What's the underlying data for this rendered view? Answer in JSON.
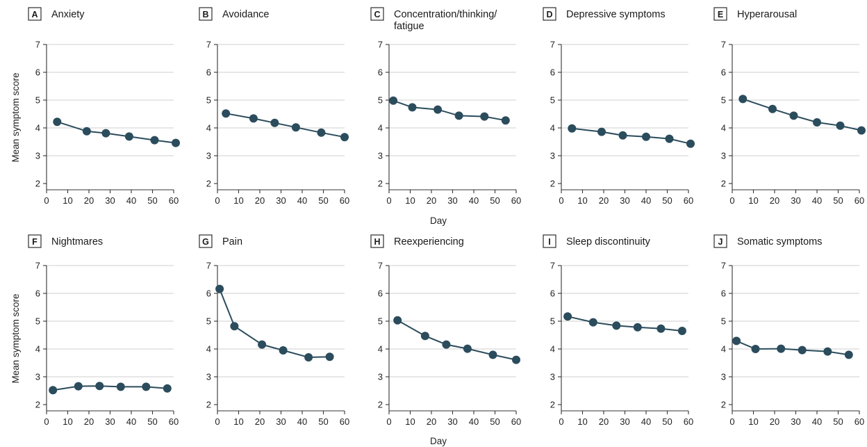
{
  "figure": {
    "y_label": "Mean symptom score",
    "x_label": "Day"
  },
  "chart_data": [
    {
      "type": "line",
      "letter": "A",
      "title": "Anxiety",
      "x": [
        5,
        19,
        28,
        39,
        51,
        61
      ],
      "y": [
        4.22,
        3.88,
        3.81,
        3.69,
        3.56,
        3.46
      ],
      "xlim": [
        0,
        60
      ],
      "ylim": [
        2,
        7
      ],
      "xticks": [
        0,
        10,
        20,
        30,
        40,
        50,
        60
      ],
      "yticks": [
        2,
        3,
        4,
        5,
        6,
        7
      ],
      "grid": "horizontal",
      "color": "#2b4c5c"
    },
    {
      "type": "line",
      "letter": "B",
      "title": "Avoidance",
      "x": [
        4,
        17,
        27,
        37,
        49,
        60
      ],
      "y": [
        4.52,
        4.34,
        4.18,
        4.02,
        3.83,
        3.67
      ],
      "xlim": [
        0,
        60
      ],
      "ylim": [
        2,
        7
      ],
      "xticks": [
        0,
        10,
        20,
        30,
        40,
        50,
        60
      ],
      "yticks": [
        2,
        3,
        4,
        5,
        6,
        7
      ],
      "grid": "horizontal",
      "color": "#2b4c5c"
    },
    {
      "type": "line",
      "letter": "C",
      "title": "Concentration/thinking/ fatigue",
      "title_lines": [
        "Concentration/thinking/",
        "fatigue"
      ],
      "x": [
        2,
        11,
        23,
        33,
        45,
        55
      ],
      "y": [
        4.98,
        4.74,
        4.66,
        4.44,
        4.41,
        4.27
      ],
      "xlim": [
        0,
        60
      ],
      "ylim": [
        2,
        7
      ],
      "xticks": [
        0,
        10,
        20,
        30,
        40,
        50,
        60
      ],
      "yticks": [
        2,
        3,
        4,
        5,
        6,
        7
      ],
      "grid": "horizontal",
      "color": "#2b4c5c"
    },
    {
      "type": "line",
      "letter": "D",
      "title": "Depressive symptoms",
      "x": [
        5,
        19,
        29,
        40,
        51,
        61
      ],
      "y": [
        3.98,
        3.86,
        3.73,
        3.68,
        3.61,
        3.43
      ],
      "xlim": [
        0,
        60
      ],
      "ylim": [
        2,
        7
      ],
      "xticks": [
        0,
        10,
        20,
        30,
        40,
        50,
        60
      ],
      "yticks": [
        2,
        3,
        4,
        5,
        6,
        7
      ],
      "grid": "horizontal",
      "color": "#2b4c5c"
    },
    {
      "type": "line",
      "letter": "E",
      "title": "Hyperarousal",
      "x": [
        5,
        19,
        29,
        40,
        51,
        61
      ],
      "y": [
        5.04,
        4.68,
        4.44,
        4.2,
        4.08,
        3.91
      ],
      "xlim": [
        0,
        60
      ],
      "ylim": [
        2,
        7
      ],
      "xticks": [
        0,
        10,
        20,
        30,
        40,
        50,
        60
      ],
      "yticks": [
        2,
        3,
        4,
        5,
        6,
        7
      ],
      "grid": "horizontal",
      "color": "#2b4c5c"
    },
    {
      "type": "line",
      "letter": "F",
      "title": "Nightmares",
      "x": [
        3,
        15,
        25,
        35,
        47,
        57
      ],
      "y": [
        2.52,
        2.66,
        2.67,
        2.64,
        2.64,
        2.58
      ],
      "xlim": [
        0,
        60
      ],
      "ylim": [
        2,
        7
      ],
      "xticks": [
        0,
        10,
        20,
        30,
        40,
        50,
        60
      ],
      "yticks": [
        2,
        3,
        4,
        5,
        6,
        7
      ],
      "grid": "horizontal",
      "color": "#2b4c5c"
    },
    {
      "type": "line",
      "letter": "G",
      "title": "Pain",
      "x": [
        1,
        8,
        21,
        31,
        43,
        53
      ],
      "y": [
        6.16,
        4.82,
        4.16,
        3.95,
        3.7,
        3.72
      ],
      "xlim": [
        0,
        60
      ],
      "ylim": [
        2,
        7
      ],
      "xticks": [
        0,
        10,
        20,
        30,
        40,
        50,
        60
      ],
      "yticks": [
        2,
        3,
        4,
        5,
        6,
        7
      ],
      "grid": "horizontal",
      "color": "#2b4c5c"
    },
    {
      "type": "line",
      "letter": "H",
      "title": "Reexperiencing",
      "x": [
        4,
        17,
        27,
        37,
        49,
        60
      ],
      "y": [
        5.03,
        4.47,
        4.16,
        4.01,
        3.79,
        3.61
      ],
      "xlim": [
        0,
        60
      ],
      "ylim": [
        2,
        7
      ],
      "xticks": [
        0,
        10,
        20,
        30,
        40,
        50,
        60
      ],
      "yticks": [
        2,
        3,
        4,
        5,
        6,
        7
      ],
      "grid": "horizontal",
      "color": "#2b4c5c"
    },
    {
      "type": "line",
      "letter": "I",
      "title": "Sleep discontinuity",
      "x": [
        3,
        15,
        26,
        36,
        47,
        57
      ],
      "y": [
        5.17,
        4.96,
        4.84,
        4.78,
        4.73,
        4.65
      ],
      "xlim": [
        0,
        60
      ],
      "ylim": [
        2,
        7
      ],
      "xticks": [
        0,
        10,
        20,
        30,
        40,
        50,
        60
      ],
      "yticks": [
        2,
        3,
        4,
        5,
        6,
        7
      ],
      "grid": "horizontal",
      "color": "#2b4c5c"
    },
    {
      "type": "line",
      "letter": "J",
      "title": "Somatic symptoms",
      "x": [
        2,
        11,
        23,
        33,
        45,
        55
      ],
      "y": [
        4.29,
        4.0,
        4.01,
        3.96,
        3.91,
        3.79
      ],
      "xlim": [
        0,
        60
      ],
      "ylim": [
        2,
        7
      ],
      "xticks": [
        0,
        10,
        20,
        30,
        40,
        50,
        60
      ],
      "yticks": [
        2,
        3,
        4,
        5,
        6,
        7
      ],
      "grid": "horizontal",
      "color": "#2b4c5c"
    }
  ]
}
